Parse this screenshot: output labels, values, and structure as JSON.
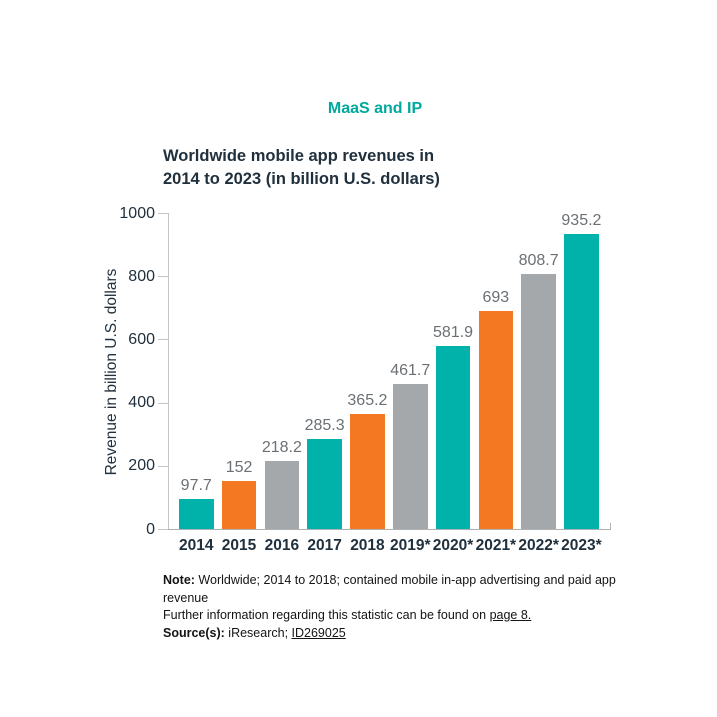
{
  "page": {
    "background": "#ffffff"
  },
  "header": {
    "title": "MaaS and IP",
    "color": "#00a99d"
  },
  "chart": {
    "title": "Worldwide mobile app revenues in\n2014 to 2023 (in billion U.S. dollars)",
    "y_axis_label": "Revenue in billion U.S. dollars"
  },
  "chart_data": {
    "type": "bar",
    "title": "Worldwide mobile app revenues in 2014 to 2023 (in billion U.S. dollars)",
    "xlabel": "",
    "ylabel": "Revenue in billion U.S. dollars",
    "categories": [
      "2014",
      "2015",
      "2016",
      "2017",
      "2018",
      "2019*",
      "2020*",
      "2021*",
      "2022*",
      "2023*"
    ],
    "values": [
      97.7,
      152,
      218.2,
      285.3,
      365.2,
      461.7,
      581.9,
      693,
      808.7,
      935.2
    ],
    "value_labels": [
      "97.7",
      "152",
      "218.2",
      "285.3",
      "365.2",
      "461.7",
      "581.9",
      "693",
      "808.7",
      "935.2"
    ],
    "ylim": [
      0,
      1000
    ],
    "yticks": [
      0,
      200,
      400,
      600,
      800,
      1000
    ],
    "grid": false,
    "legend": "none",
    "bar_color_cycle": [
      "#00b2a9",
      "#f47721",
      "#a5a8ab"
    ],
    "value_label_color": "#6b7074",
    "axis_color": "#c2c6c8"
  },
  "note": {
    "note_label": "Note:",
    "note_text": " Worldwide; 2014 to 2018; contained mobile in-app advertising and paid app revenue",
    "further_text": "Further information regarding this statistic can be found on ",
    "further_link": "page 8.",
    "source_label": "Source(s):",
    "source_text": " iResearch; ",
    "source_link": "ID269025"
  }
}
